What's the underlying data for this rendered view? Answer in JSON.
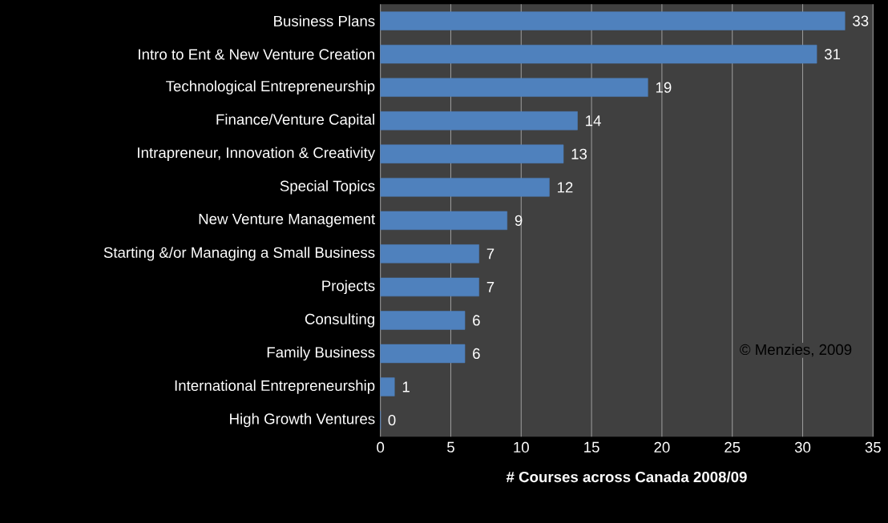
{
  "chart_data": {
    "type": "bar",
    "orientation": "horizontal",
    "categories": [
      "Business Plans",
      "Intro to Ent & New Venture Creation",
      "Technological Entrepreneurship",
      "Finance/Venture Capital",
      "Intrapreneur, Innovation  &  Creativity",
      "Special Topics",
      "New Venture Management",
      "Starting &/or Managing a Small Business",
      "Projects",
      "Consulting",
      "Family Business",
      "International Entrepreneurship",
      "High Growth Ventures"
    ],
    "values": [
      33,
      31,
      19,
      14,
      13,
      12,
      9,
      7,
      7,
      6,
      6,
      1,
      0
    ],
    "color": "#4f81bd",
    "xlabel": "# Courses across Canada 2008/09",
    "xlim": [
      0,
      35
    ],
    "xticks": [
      0,
      5,
      10,
      15,
      20,
      25,
      30,
      35
    ],
    "grid": "x",
    "data_labels": true,
    "annotations": [
      "© Menzies, 2009"
    ]
  }
}
